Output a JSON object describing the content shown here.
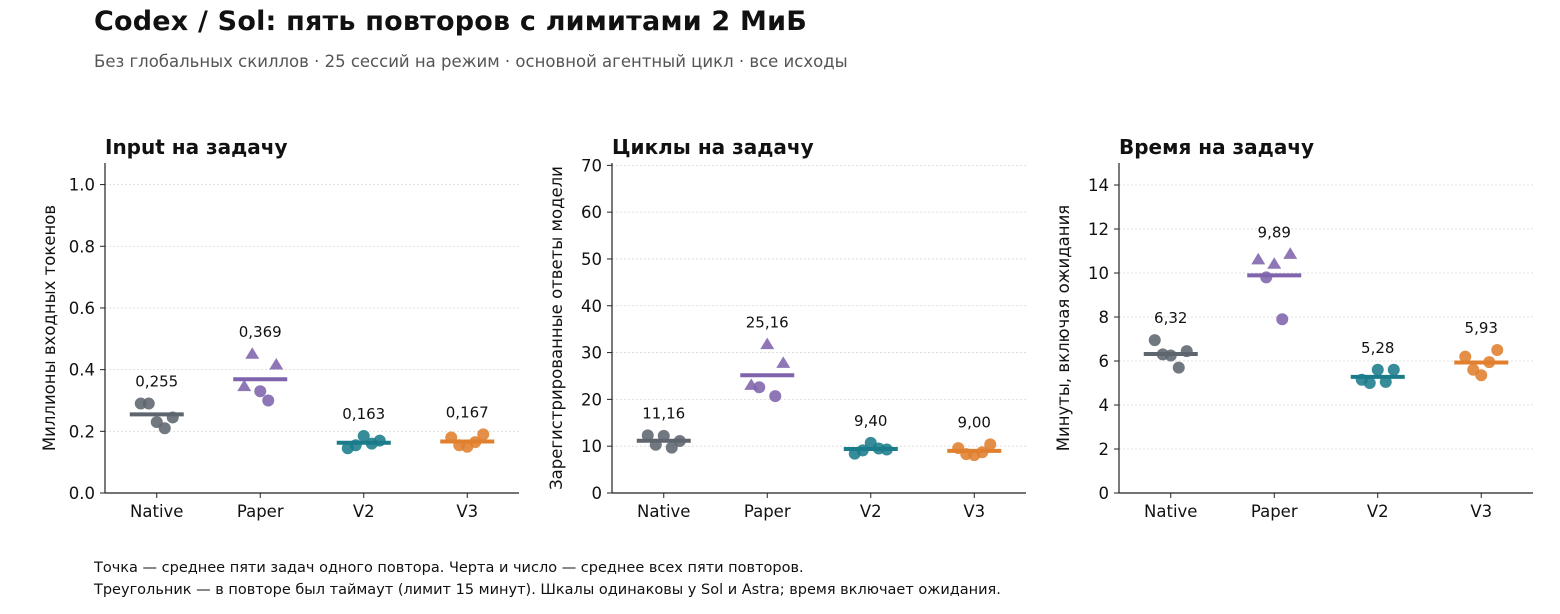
{
  "header": {
    "title": "Codex / Sol: пять повторов с лимитами 2 МиБ",
    "subtitle": "Без глобальных скиллов · 25 сессий на режим · основной агентный цикл · все исходы"
  },
  "notes": {
    "line1": "Точка — среднее пяти задач одного повтора. Черта и число — среднее всех пяти повторов.",
    "line2": "Треугольник — в повторе был таймаут (лимит 15 минут). Шкалы одинаковы у Sol и Astra; время включает ожидания."
  },
  "colors": {
    "Native": "#5e656e",
    "Paper": "#7f64ad",
    "V2": "#1a7c8a",
    "V3": "#e07f2d"
  },
  "chart_data": [
    {
      "type": "scatter",
      "title": "Input на задачу",
      "ylabel": "Миллионы входных токенов",
      "categories": [
        "Native",
        "Paper",
        "V2",
        "V3"
      ],
      "ylim": [
        0,
        1.07
      ],
      "yticks": [
        "0.0",
        "0.2",
        "0.4",
        "0.6",
        "0.8",
        "1.0"
      ],
      "grid": true,
      "means": [
        0.255,
        0.369,
        0.163,
        0.167
      ],
      "mean_labels": [
        "0,255",
        "0,369",
        "0,163",
        "0,167"
      ],
      "series": [
        {
          "category": "Native",
          "points": [
            {
              "y": 0.29,
              "marker": "circle"
            },
            {
              "y": 0.29,
              "marker": "circle"
            },
            {
              "y": 0.23,
              "marker": "circle"
            },
            {
              "y": 0.21,
              "marker": "circle"
            },
            {
              "y": 0.245,
              "marker": "circle"
            }
          ]
        },
        {
          "category": "Paper",
          "points": [
            {
              "y": 0.345,
              "marker": "triangle"
            },
            {
              "y": 0.45,
              "marker": "triangle"
            },
            {
              "y": 0.33,
              "marker": "circle"
            },
            {
              "y": 0.3,
              "marker": "circle"
            },
            {
              "y": 0.415,
              "marker": "triangle"
            }
          ]
        },
        {
          "category": "V2",
          "points": [
            {
              "y": 0.145,
              "marker": "circle"
            },
            {
              "y": 0.155,
              "marker": "circle"
            },
            {
              "y": 0.185,
              "marker": "circle"
            },
            {
              "y": 0.16,
              "marker": "circle"
            },
            {
              "y": 0.17,
              "marker": "circle"
            }
          ]
        },
        {
          "category": "V3",
          "points": [
            {
              "y": 0.18,
              "marker": "circle"
            },
            {
              "y": 0.155,
              "marker": "circle"
            },
            {
              "y": 0.15,
              "marker": "circle"
            },
            {
              "y": 0.165,
              "marker": "circle"
            },
            {
              "y": 0.19,
              "marker": "circle"
            }
          ]
        }
      ]
    },
    {
      "type": "scatter",
      "title": "Циклы на задачу",
      "ylabel": "Зарегистрированные ответы модели",
      "categories": [
        "Native",
        "Paper",
        "V2",
        "V3"
      ],
      "ylim": [
        0,
        70.5
      ],
      "yticks": [
        "0",
        "10",
        "20",
        "30",
        "40",
        "50",
        "60",
        "70"
      ],
      "grid": true,
      "means": [
        11.16,
        25.16,
        9.4,
        9.0
      ],
      "mean_labels": [
        "11,16",
        "25,16",
        "9,40",
        "9,00"
      ],
      "series": [
        {
          "category": "Native",
          "points": [
            {
              "y": 12.3,
              "marker": "circle"
            },
            {
              "y": 10.3,
              "marker": "circle"
            },
            {
              "y": 12.2,
              "marker": "circle"
            },
            {
              "y": 9.7,
              "marker": "circle"
            },
            {
              "y": 11.1,
              "marker": "circle"
            }
          ]
        },
        {
          "category": "Paper",
          "points": [
            {
              "y": 23,
              "marker": "triangle"
            },
            {
              "y": 22.6,
              "marker": "circle"
            },
            {
              "y": 31.7,
              "marker": "triangle"
            },
            {
              "y": 20.7,
              "marker": "circle"
            },
            {
              "y": 27.7,
              "marker": "triangle"
            }
          ]
        },
        {
          "category": "V2",
          "points": [
            {
              "y": 8.4,
              "marker": "circle"
            },
            {
              "y": 9.1,
              "marker": "circle"
            },
            {
              "y": 10.7,
              "marker": "circle"
            },
            {
              "y": 9.5,
              "marker": "circle"
            },
            {
              "y": 9.3,
              "marker": "circle"
            }
          ]
        },
        {
          "category": "V3",
          "points": [
            {
              "y": 9.6,
              "marker": "circle"
            },
            {
              "y": 8.3,
              "marker": "circle"
            },
            {
              "y": 8.1,
              "marker": "circle"
            },
            {
              "y": 8.7,
              "marker": "circle"
            },
            {
              "y": 10.4,
              "marker": "circle"
            }
          ]
        }
      ]
    },
    {
      "type": "scatter",
      "title": "Время на задачу",
      "ylabel": "Минуты, включая ожидания",
      "categories": [
        "Native",
        "Paper",
        "V2",
        "V3"
      ],
      "ylim": [
        0,
        15
      ],
      "yticks": [
        "0",
        "2",
        "4",
        "6",
        "8",
        "10",
        "12",
        "14"
      ],
      "grid": true,
      "means": [
        6.32,
        9.89,
        5.28,
        5.93
      ],
      "mean_labels": [
        "6,32",
        "9,89",
        "5,28",
        "5,93"
      ],
      "series": [
        {
          "category": "Native",
          "points": [
            {
              "y": 6.95,
              "marker": "circle"
            },
            {
              "y": 6.3,
              "marker": "circle"
            },
            {
              "y": 6.25,
              "marker": "circle"
            },
            {
              "y": 5.7,
              "marker": "circle"
            },
            {
              "y": 6.45,
              "marker": "circle"
            }
          ]
        },
        {
          "category": "Paper",
          "points": [
            {
              "y": 10.6,
              "marker": "triangle"
            },
            {
              "y": 9.8,
              "marker": "circle"
            },
            {
              "y": 10.4,
              "marker": "triangle"
            },
            {
              "y": 7.9,
              "marker": "circle"
            },
            {
              "y": 10.85,
              "marker": "triangle"
            }
          ]
        },
        {
          "category": "V2",
          "points": [
            {
              "y": 5.15,
              "marker": "circle"
            },
            {
              "y": 5.0,
              "marker": "circle"
            },
            {
              "y": 5.6,
              "marker": "circle"
            },
            {
              "y": 5.05,
              "marker": "circle"
            },
            {
              "y": 5.6,
              "marker": "circle"
            }
          ]
        },
        {
          "category": "V3",
          "points": [
            {
              "y": 6.2,
              "marker": "circle"
            },
            {
              "y": 5.6,
              "marker": "circle"
            },
            {
              "y": 5.35,
              "marker": "circle"
            },
            {
              "y": 5.95,
              "marker": "circle"
            },
            {
              "y": 6.5,
              "marker": "circle"
            }
          ]
        }
      ]
    }
  ]
}
